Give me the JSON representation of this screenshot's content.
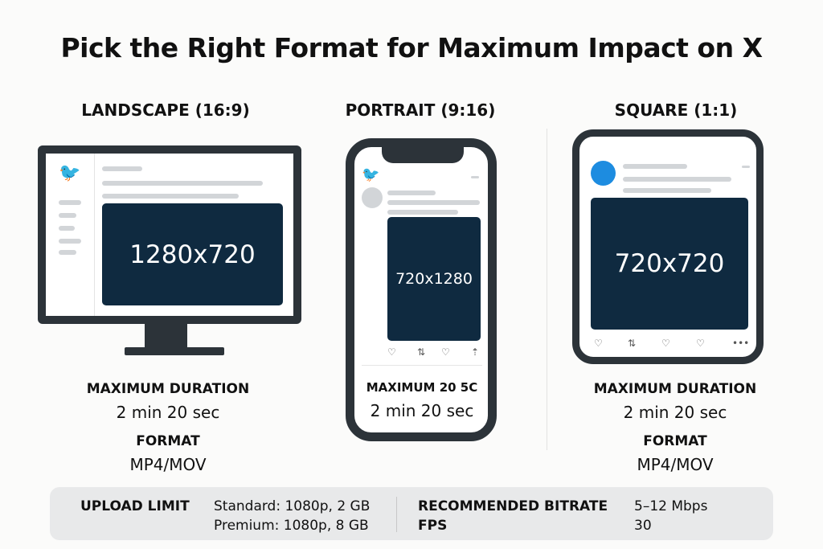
{
  "title": "Pick the Right Format for Maximum Impact on X",
  "colors": {
    "screen_dark": "#2c3339",
    "media": "#0f2a40",
    "accent": "#1d8ce0"
  },
  "formats": [
    {
      "heading": "LANDSCAPE (16:9)",
      "resolution": "1280x720",
      "duration_label": "MAXIMUM DURATION",
      "duration": "2 min 20 sec",
      "format_label": "FORMAT",
      "format": "MP4/MOV"
    },
    {
      "heading": "PORTRAIT (9:16)",
      "resolution": "720x1280",
      "duration_label": "MAXIMUM 20 5C",
      "duration": "2 min 20 sec"
    },
    {
      "heading": "SQUARE (1:1)",
      "resolution": "720x720",
      "duration_label": "MAXIMUM DURATION",
      "duration": "2 min 20 sec",
      "format_label": "FORMAT",
      "format": "MP4/MOV"
    }
  ],
  "icons": {
    "bird": "twitter-bird-icon",
    "heart": "heart-icon",
    "retweet": "retweet-icon",
    "share": "share-icon",
    "more": "more-icon"
  },
  "specs": {
    "upload_label": "UPLOAD LIMIT",
    "upload_standard": "Standard: 1080p, 2 GB",
    "upload_premium": "Premium: 1080p, 8 GB",
    "bitrate_label": "RECOMMENDED BITRATE",
    "bitrate": "5–12 Mbps",
    "fps_label": "FPS",
    "fps": "30"
  }
}
